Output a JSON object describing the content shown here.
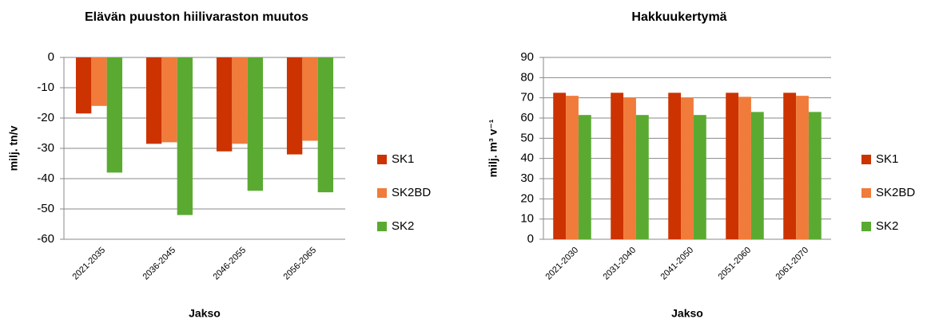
{
  "chart_data": [
    {
      "type": "bar",
      "title": "Elävän puuston hiilivaraston muutos",
      "y_label": "milj. tn/v",
      "x_label": "Jakso",
      "categories": [
        "2021-2035",
        "2036-2045",
        "2046-2055",
        "2056-2065"
      ],
      "series": [
        {
          "name": "SK1",
          "color": "#cc3300",
          "values": [
            -18.5,
            -28.5,
            -31,
            -32
          ]
        },
        {
          "name": "SK2BD",
          "color": "#f07b3a",
          "values": [
            -16,
            -28,
            -28.5,
            -27.5
          ]
        },
        {
          "name": "SK2",
          "color": "#5aaa32",
          "values": [
            -38,
            -52,
            -44,
            -44.5
          ]
        }
      ],
      "ylim": [
        -60,
        0
      ],
      "yticks": [
        0,
        -10,
        -20,
        -30,
        -40,
        -50,
        -60
      ],
      "grid": true,
      "legend": "right"
    },
    {
      "type": "bar",
      "title": "Hakkuukertymä",
      "y_label": "milj. m³ v⁻¹",
      "x_label": "Jakso",
      "categories": [
        "2021-2030",
        "2031-2040",
        "2041-2050",
        "2051-2060",
        "2061-2070"
      ],
      "series": [
        {
          "name": "SK1",
          "color": "#cc3300",
          "values": [
            72.5,
            72.5,
            72.5,
            72.5,
            72.5
          ]
        },
        {
          "name": "SK2BD",
          "color": "#f07b3a",
          "values": [
            71,
            70,
            70,
            70.5,
            71
          ]
        },
        {
          "name": "SK2",
          "color": "#5aaa32",
          "values": [
            61.5,
            61.5,
            61.5,
            63,
            63
          ]
        }
      ],
      "ylim": [
        0,
        90
      ],
      "yticks": [
        0,
        10,
        20,
        30,
        40,
        50,
        60,
        70,
        80,
        90
      ],
      "grid": true,
      "legend": "right"
    }
  ]
}
